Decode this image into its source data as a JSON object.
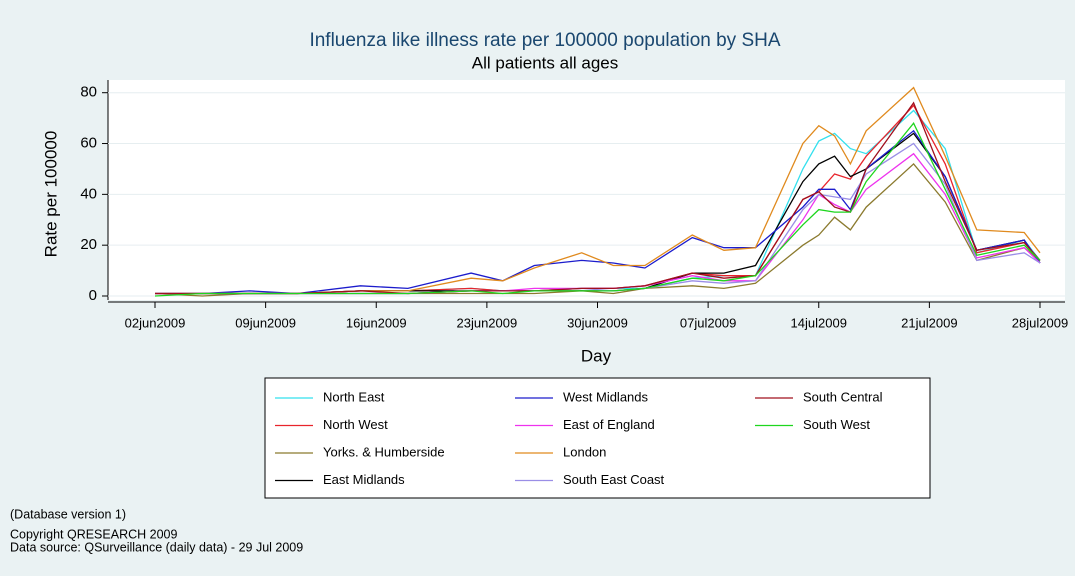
{
  "chart_data": {
    "type": "line",
    "title": "Influenza like illness rate per 100000 population by SHA",
    "subtitle": "All patients all ages",
    "x_label": "Day",
    "y_label": "Rate per 100000",
    "x": [
      "2009-06-02",
      "2009-06-05",
      "2009-06-08",
      "2009-06-11",
      "2009-06-15",
      "2009-06-18",
      "2009-06-22",
      "2009-06-24",
      "2009-06-26",
      "2009-06-29",
      "2009-07-01",
      "2009-07-03",
      "2009-07-06",
      "2009-07-08",
      "2009-07-10",
      "2009-07-13",
      "2009-07-14",
      "2009-07-15",
      "2009-07-16",
      "2009-07-17",
      "2009-07-20",
      "2009-07-22",
      "2009-07-24",
      "2009-07-27",
      "2009-07-28"
    ],
    "xlim": [
      "2009-06-02",
      "2009-07-28"
    ],
    "xticks": [
      {
        "value": "2009-06-02",
        "label": "02jun2009"
      },
      {
        "value": "2009-06-09",
        "label": "09jun2009"
      },
      {
        "value": "2009-06-16",
        "label": "16jun2009"
      },
      {
        "value": "2009-06-23",
        "label": "23jun2009"
      },
      {
        "value": "2009-06-30",
        "label": "30jun2009"
      },
      {
        "value": "2009-07-07",
        "label": "07jul2009"
      },
      {
        "value": "2009-07-14",
        "label": "14jul2009"
      },
      {
        "value": "2009-07-21",
        "label": "21jul2009"
      },
      {
        "value": "2009-07-28",
        "label": "28jul2009"
      }
    ],
    "ylim": [
      0,
      85
    ],
    "yticks": [
      0,
      20,
      40,
      60,
      80
    ],
    "grid": true,
    "legend_rows": 4,
    "series": [
      {
        "name": "North East",
        "color": "#33e0ee",
        "values": [
          1,
          1,
          1,
          1,
          2,
          2,
          3,
          2,
          2,
          3,
          3,
          3,
          7,
          8,
          8,
          50,
          61,
          64,
          58,
          56,
          73,
          58,
          17,
          22,
          14
        ]
      },
      {
        "name": "North West",
        "color": "#e8242c",
        "values": [
          1,
          1,
          1,
          1,
          2,
          2,
          3,
          2,
          2,
          3,
          3,
          4,
          9,
          8,
          8,
          38,
          41,
          48,
          46,
          55,
          75,
          52,
          17,
          21,
          14
        ]
      },
      {
        "name": "Yorks. & Humberside",
        "color": "#8b7a2e",
        "values": [
          1,
          0,
          1,
          1,
          1,
          1,
          1,
          1,
          1,
          2,
          1,
          3,
          4,
          3,
          5,
          20,
          24,
          31,
          26,
          35,
          52,
          37,
          14,
          19,
          14
        ]
      },
      {
        "name": "East Midlands",
        "color": "#000000",
        "values": [
          1,
          1,
          1,
          1,
          2,
          2,
          2,
          2,
          2,
          2,
          2,
          3,
          9,
          9,
          12,
          45,
          52,
          55,
          47,
          50,
          64,
          47,
          18,
          22,
          13
        ]
      },
      {
        "name": "West Midlands",
        "color": "#1c1ccc",
        "values": [
          1,
          1,
          2,
          1,
          4,
          3,
          9,
          6,
          12,
          14,
          13,
          11,
          23,
          19,
          19,
          35,
          42,
          42,
          34,
          50,
          65,
          47,
          18,
          22,
          13
        ]
      },
      {
        "name": "East of England",
        "color": "#ee33ee",
        "values": [
          1,
          1,
          1,
          1,
          1,
          1,
          2,
          2,
          3,
          3,
          3,
          4,
          8,
          6,
          6,
          30,
          40,
          36,
          33,
          42,
          56,
          40,
          15,
          19,
          13
        ]
      },
      {
        "name": "London",
        "color": "#e08a1e",
        "values": [
          1,
          1,
          1,
          1,
          2,
          2,
          7,
          6,
          11,
          17,
          12,
          12,
          24,
          18,
          19,
          60,
          67,
          63,
          52,
          65,
          82,
          55,
          26,
          25,
          17
        ]
      },
      {
        "name": "South East Coast",
        "color": "#9a8ee6",
        "values": [
          1,
          1,
          1,
          1,
          1,
          1,
          2,
          2,
          2,
          3,
          2,
          3,
          6,
          5,
          6,
          34,
          40,
          39,
          38,
          48,
          60,
          44,
          14,
          17,
          13
        ]
      },
      {
        "name": "South Central",
        "color": "#a0101e",
        "values": [
          1,
          1,
          1,
          1,
          2,
          1,
          2,
          2,
          2,
          3,
          3,
          4,
          9,
          7,
          8,
          38,
          41,
          35,
          33,
          50,
          76,
          45,
          18,
          21,
          14
        ]
      },
      {
        "name": "South West",
        "color": "#1ed61e",
        "values": [
          0,
          1,
          1,
          1,
          1,
          1,
          2,
          1,
          2,
          2,
          2,
          3,
          7,
          6,
          8,
          28,
          34,
          33,
          33,
          45,
          68,
          42,
          16,
          20,
          14
        ]
      }
    ],
    "notes": [
      "(Database version 1)",
      "Copyright QRESEARCH 2009",
      "Data source: QSurveillance (daily data) - 29 Jul 2009"
    ]
  }
}
